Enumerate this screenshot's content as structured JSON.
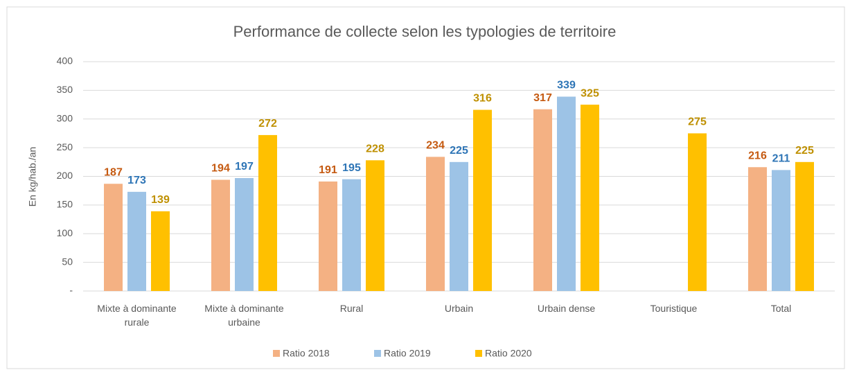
{
  "chart_data": {
    "type": "bar",
    "title": "Performance de collecte selon les typologies de territoire",
    "y_label": "En kg/hab./an",
    "categories": [
      "Mixte à dominante rurale",
      "Mixte à dominante urbaine",
      "Rural",
      "Urbain",
      "Urbain dense",
      "Touristique",
      "Total"
    ],
    "series": [
      {
        "name": "Ratio 2018",
        "color": "#f4b183",
        "label_color": "#c55a11",
        "values": [
          187,
          194,
          191,
          234,
          317,
          null,
          216
        ]
      },
      {
        "name": "Ratio 2019",
        "color": "#9dc3e6",
        "label_color": "#2e75b6",
        "values": [
          173,
          197,
          195,
          225,
          339,
          null,
          211
        ]
      },
      {
        "name": "Ratio 2020",
        "color": "#ffc000",
        "label_color": "#bf9000",
        "values": [
          139,
          272,
          228,
          316,
          325,
          275,
          225
        ]
      }
    ],
    "ylim": [
      0,
      400
    ],
    "yticks": [
      {
        "value": 0,
        "label": "-"
      },
      50,
      100,
      150,
      200,
      250,
      300,
      350,
      400
    ],
    "grid": true,
    "legend": "bottom"
  }
}
